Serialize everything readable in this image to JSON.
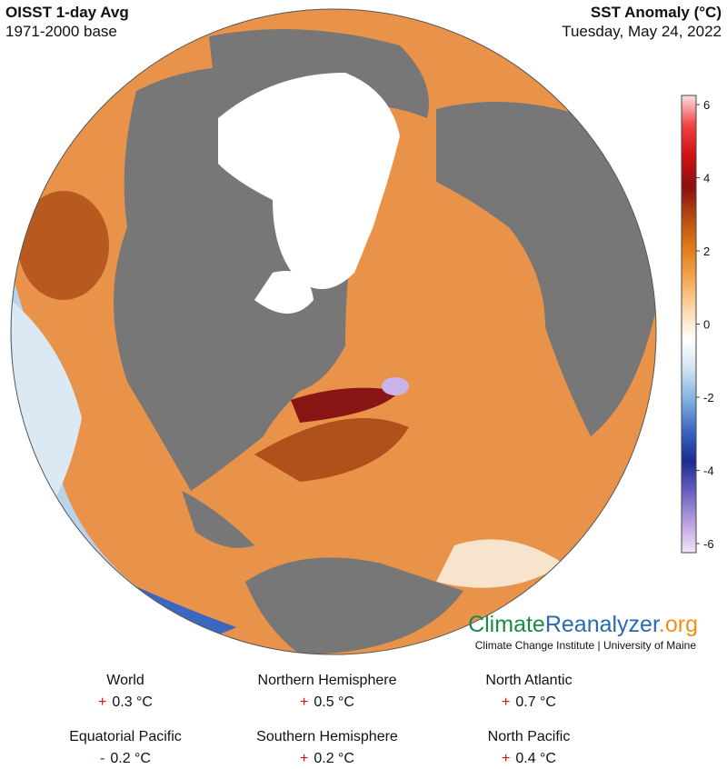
{
  "header": {
    "title": "OISST 1-day Avg",
    "subtitle": "1971-2000 base",
    "variable": "SST Anomaly (°C)",
    "date": "Tuesday, May 24, 2022"
  },
  "colorbar": {
    "lim": [
      -6.25,
      6.25
    ],
    "ticks": [
      6,
      4,
      2,
      0,
      -2,
      -4,
      -6
    ],
    "colors": [
      "#fbe0e0",
      "#f04040",
      "#d01010",
      "#8a1010",
      "#b84a10",
      "#e07a18",
      "#f4a650",
      "#fbd8a8",
      "#ffffff",
      "#cfe3f3",
      "#7fb0e0",
      "#3a68c0",
      "#1a2c90",
      "#6a60c0",
      "#b8a0e0",
      "#f4e4f6"
    ]
  },
  "logo": {
    "parts": [
      "Climate",
      "Reanalyzer",
      ".org"
    ],
    "credit": "Climate Change Institute | University of Maine"
  },
  "stats": [
    {
      "label": "World",
      "sign": "+",
      "value": "0.3 °C"
    },
    {
      "label": "Northern Hemisphere",
      "sign": "+",
      "value": "0.5 °C"
    },
    {
      "label": "North Atlantic",
      "sign": "+",
      "value": "0.7 °C"
    },
    {
      "label": "Equatorial Pacific",
      "sign": "-",
      "value": "0.2 °C"
    },
    {
      "label": "Southern Hemisphere",
      "sign": "+",
      "value": "0.2 °C"
    },
    {
      "label": "North Pacific",
      "sign": "+",
      "value": "0.4 °C"
    }
  ]
}
